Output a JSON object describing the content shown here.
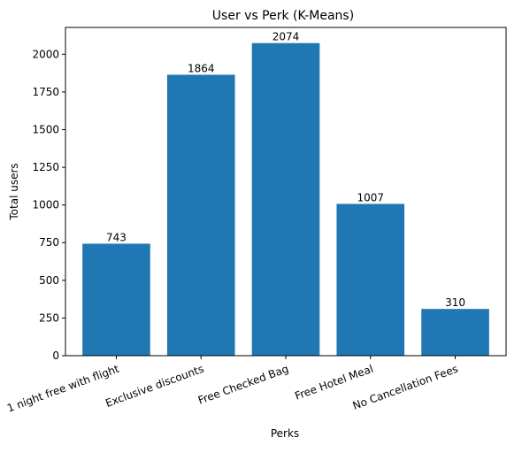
{
  "chart_data": {
    "type": "bar",
    "title": "User vs Perk (K-Means)",
    "xlabel": "Perks",
    "ylabel": "Total users",
    "categories": [
      "1 night free with flight",
      "Exclusive discounts",
      "Free Checked Bag",
      "Free Hotel Meal",
      "No Cancellation Fees"
    ],
    "values": [
      743,
      1864,
      2074,
      1007,
      310
    ],
    "data_labels": [
      "743",
      "1864",
      "2074",
      "1007",
      "310"
    ],
    "ylim": [
      0,
      2178
    ],
    "yticks": [
      0,
      250,
      500,
      750,
      1000,
      1250,
      1500,
      1750,
      2000
    ],
    "ytick_labels": [
      "0",
      "250",
      "500",
      "750",
      "1000",
      "1250",
      "1500",
      "1750",
      "2000"
    ],
    "bar_color": "#1f77b4",
    "grid": false,
    "legend": "none"
  }
}
